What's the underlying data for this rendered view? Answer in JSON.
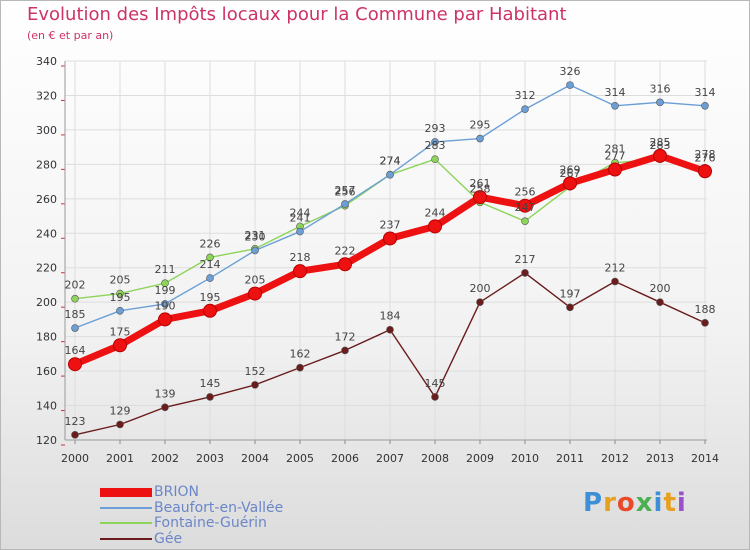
{
  "header": {
    "title": "Evolution des Impôts locaux pour la Commune par Habitant",
    "subtitle": "(en € et par an)"
  },
  "logo": {
    "text": "Proxiti",
    "colors": [
      "#3d8fd6",
      "#e8a020",
      "#e84a2a",
      "#4caf50",
      "#3d8fd6",
      "#e8a020",
      "#9c4fc8"
    ]
  },
  "chart_data": {
    "type": "line",
    "title": "Evolution des Impôts locaux pour la Commune par Habitant",
    "subtitle": "(en € et par an)",
    "xlabel": "",
    "ylabel": "",
    "categories": [
      "2000",
      "2001",
      "2002",
      "2003",
      "2004",
      "2005",
      "2006",
      "2007",
      "2008",
      "2009",
      "2010",
      "2011",
      "2012",
      "2013",
      "2014"
    ],
    "ylim": [
      120,
      340
    ],
    "yticks": [
      120,
      140,
      160,
      180,
      200,
      220,
      240,
      260,
      280,
      300,
      320,
      340
    ],
    "grid": true,
    "legend_position": "bottom-left",
    "series": [
      {
        "name": "Gée",
        "color": "#6b1c1c",
        "values": [
          123,
          129,
          139,
          145,
          152,
          162,
          172,
          184,
          145,
          200,
          217,
          197,
          212,
          200,
          188
        ]
      },
      {
        "name": "Fontaine-Guérin",
        "color": "#8cd45a",
        "values": [
          202,
          205,
          211,
          226,
          231,
          244,
          256,
          274,
          283,
          258,
          247,
          267,
          281,
          283,
          278
        ]
      },
      {
        "name": "Beaufort-en-Vallée",
        "color": "#6b9fd6",
        "values": [
          185,
          195,
          199,
          214,
          230,
          241,
          257,
          274,
          293,
          295,
          312,
          326,
          314,
          316,
          314
        ]
      },
      {
        "name": "BRION",
        "color": "#ee1111",
        "values": [
          164,
          175,
          190,
          195,
          205,
          218,
          222,
          237,
          244,
          261,
          256,
          269,
          277,
          285,
          276
        ]
      }
    ],
    "legend_order": [
      "BRION",
      "Beaufort-en-Vallée",
      "Fontaine-Guérin",
      "Gée"
    ]
  }
}
